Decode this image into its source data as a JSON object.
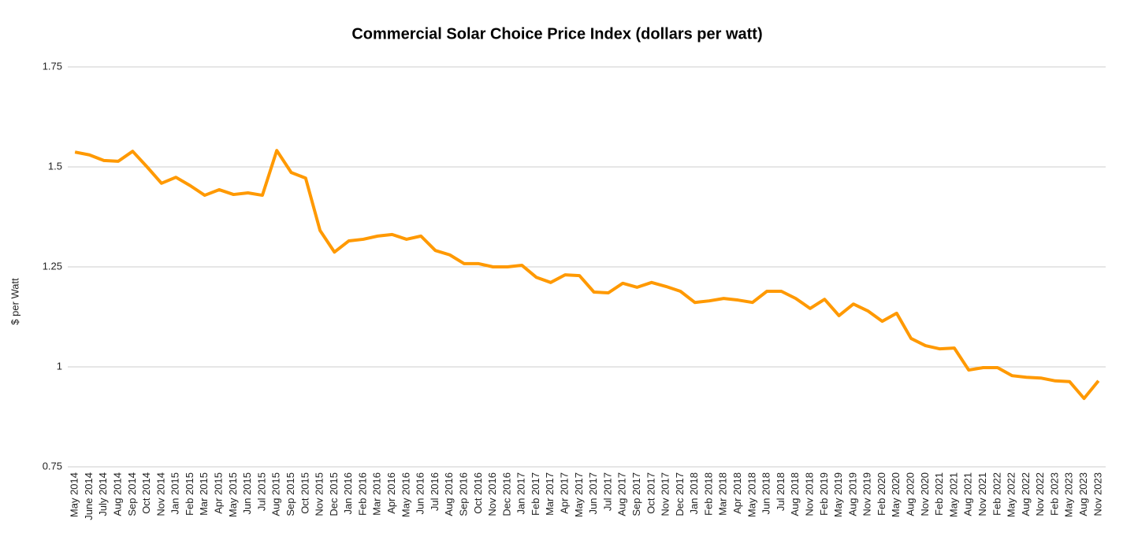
{
  "chart_data": {
    "type": "line",
    "title": "Commercial Solar Choice Price Index (dollars per watt)",
    "y_label": "$ per Watt",
    "categories": [
      "May 2014",
      "June 2014",
      "July 2014",
      "Aug 2014",
      "Sep 2014",
      "Oct 2014",
      "Nov 2014",
      "Jan 2015",
      "Feb 2015",
      "Mar 2015",
      "Apr 2015",
      "May 2015",
      "Jun 2015",
      "Jul 2015",
      "Aug 2015",
      "Sep 2015",
      "Oct 2015",
      "Nov 2015",
      "Dec 2015",
      "Jan 2016",
      "Feb 2016",
      "Mar 2016",
      "Apr 2016",
      "May 2016",
      "Jun 2016",
      "Jul 2016",
      "Aug 2016",
      "Sep 2016",
      "Oct 2016",
      "Nov 2016",
      "Dec 2016",
      "Jan 2017",
      "Feb 2017",
      "Mar 2017",
      "Apr 2017",
      "May 2017",
      "Jun 2017",
      "Jul 2017",
      "Aug 2017",
      "Sep 2017",
      "Oct 2017",
      "Nov 2017",
      "Dec 2017",
      "Jan 2018",
      "Feb 2018",
      "Mar 2018",
      "Apr 2018",
      "May 2018",
      "Jun 2018",
      "Jul 2018",
      "Aug 2018",
      "Nov 2018",
      "Feb 2019",
      "May 2019",
      "Aug 2019",
      "Nov 2019",
      "Feb 2020",
      "May 2020",
      "Aug 2020",
      "Nov 2020",
      "Feb 2021",
      "May 2021",
      "Aug 2021",
      "Nov 2021",
      "Feb 2022",
      "May 2022",
      "Aug 2022",
      "Nov 2022",
      "Feb 2023",
      "May 2023",
      "Aug 2023",
      "Nov 2023"
    ],
    "values": [
      1.537,
      1.53,
      1.516,
      1.514,
      1.539,
      1.5,
      1.459,
      1.474,
      1.453,
      1.429,
      1.443,
      1.431,
      1.435,
      1.429,
      1.541,
      1.486,
      1.472,
      1.341,
      1.287,
      1.315,
      1.319,
      1.327,
      1.331,
      1.319,
      1.327,
      1.291,
      1.28,
      1.258,
      1.258,
      1.25,
      1.25,
      1.254,
      1.224,
      1.211,
      1.23,
      1.228,
      1.187,
      1.185,
      1.209,
      1.199,
      1.211,
      1.201,
      1.189,
      1.161,
      1.165,
      1.171,
      1.167,
      1.161,
      1.189,
      1.189,
      1.171,
      1.146,
      1.169,
      1.128,
      1.157,
      1.14,
      1.114,
      1.134,
      1.071,
      1.053,
      1.045,
      1.047,
      0.992,
      0.998,
      0.998,
      0.978,
      0.974,
      0.972,
      0.965,
      0.963,
      0.921,
      0.965
    ],
    "color": "#ff9900",
    "ylim": [
      0.75,
      1.75
    ],
    "yticks": [
      0.75,
      1,
      1.25,
      1.5,
      1.75
    ],
    "grid": true
  }
}
